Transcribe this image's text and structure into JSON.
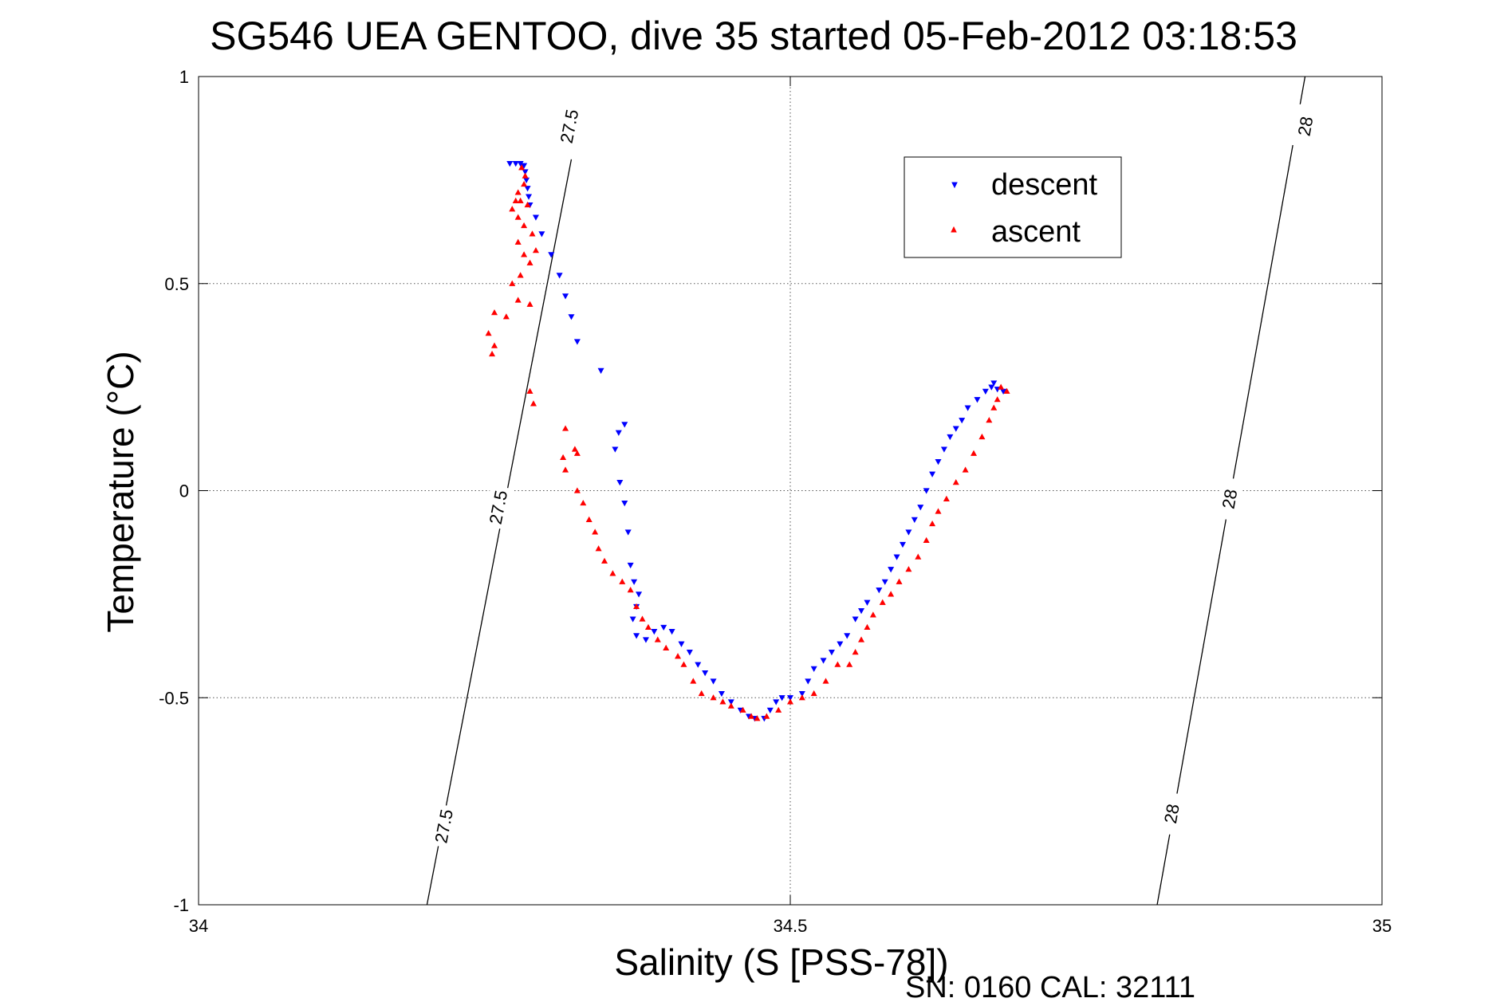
{
  "chart_data": {
    "type": "scatter",
    "title": "SG546 UEA GENTOO, dive 35 started 05-Feb-2012 03:18:53",
    "xlabel": "Salinity (S [PSS-78])",
    "ylabel": "Temperature (°C)",
    "xlim": [
      34,
      35
    ],
    "ylim": [
      -1,
      1
    ],
    "xticks": [
      34,
      34.5,
      35
    ],
    "xtick_labels": [
      "34",
      "34.5",
      "35"
    ],
    "yticks": [
      -1,
      -0.5,
      0,
      0.5,
      1
    ],
    "ytick_labels": [
      "-1",
      "-0.5",
      "0",
      "0.5",
      "1"
    ],
    "grid": true,
    "legend_position": "top-right",
    "footer": "SN: 0160  CAL: 32111",
    "isopycnals": [
      {
        "label": "27.5",
        "color": "#000000",
        "points": [
          [
            34.193,
            -1.0
          ],
          [
            34.315,
            0.8
          ]
        ],
        "label_positions": [
          [
            34.207,
            -0.81
          ],
          [
            34.253,
            -0.04
          ],
          [
            34.313,
            0.88
          ]
        ]
      },
      {
        "label": "28",
        "color": "#000000",
        "points": [
          [
            34.81,
            -1.0
          ],
          [
            34.935,
            1.0
          ]
        ],
        "label_positions": [
          [
            34.822,
            -0.78
          ],
          [
            34.871,
            -0.02
          ],
          [
            34.935,
            0.88
          ]
        ]
      }
    ],
    "series": [
      {
        "name": "descent",
        "color": "#0000ff",
        "marker": "triangle-down",
        "points": [
          [
            34.263,
            0.79
          ],
          [
            34.268,
            0.79
          ],
          [
            34.272,
            0.79
          ],
          [
            34.275,
            0.785
          ],
          [
            34.276,
            0.77
          ],
          [
            34.277,
            0.75
          ],
          [
            34.278,
            0.73
          ],
          [
            34.279,
            0.71
          ],
          [
            34.28,
            0.69
          ],
          [
            34.285,
            0.66
          ],
          [
            34.29,
            0.62
          ],
          [
            34.298,
            0.57
          ],
          [
            34.305,
            0.52
          ],
          [
            34.31,
            0.47
          ],
          [
            34.315,
            0.42
          ],
          [
            34.32,
            0.36
          ],
          [
            34.34,
            0.29
          ],
          [
            34.36,
            0.16
          ],
          [
            34.355,
            0.14
          ],
          [
            34.352,
            0.1
          ],
          [
            34.356,
            0.02
          ],
          [
            34.36,
            -0.03
          ],
          [
            34.363,
            -0.1
          ],
          [
            34.365,
            -0.18
          ],
          [
            34.368,
            -0.22
          ],
          [
            34.372,
            -0.25
          ],
          [
            34.37,
            -0.28
          ],
          [
            34.367,
            -0.31
          ],
          [
            34.37,
            -0.35
          ],
          [
            34.378,
            -0.36
          ],
          [
            34.385,
            -0.34
          ],
          [
            34.393,
            -0.33
          ],
          [
            34.4,
            -0.34
          ],
          [
            34.408,
            -0.37
          ],
          [
            34.415,
            -0.39
          ],
          [
            34.422,
            -0.42
          ],
          [
            34.428,
            -0.44
          ],
          [
            34.435,
            -0.46
          ],
          [
            34.442,
            -0.49
          ],
          [
            34.45,
            -0.51
          ],
          [
            34.458,
            -0.53
          ],
          [
            34.465,
            -0.545
          ],
          [
            34.47,
            -0.55
          ],
          [
            34.478,
            -0.55
          ],
          [
            34.483,
            -0.53
          ],
          [
            34.488,
            -0.51
          ],
          [
            34.493,
            -0.5
          ],
          [
            34.5,
            -0.5
          ],
          [
            34.51,
            -0.49
          ],
          [
            34.515,
            -0.46
          ],
          [
            34.52,
            -0.43
          ],
          [
            34.528,
            -0.41
          ],
          [
            34.535,
            -0.39
          ],
          [
            34.542,
            -0.37
          ],
          [
            34.548,
            -0.35
          ],
          [
            34.555,
            -0.31
          ],
          [
            34.56,
            -0.29
          ],
          [
            34.565,
            -0.27
          ],
          [
            34.575,
            -0.24
          ],
          [
            34.58,
            -0.22
          ],
          [
            34.585,
            -0.19
          ],
          [
            34.59,
            -0.16
          ],
          [
            34.595,
            -0.13
          ],
          [
            34.6,
            -0.1
          ],
          [
            34.605,
            -0.07
          ],
          [
            34.61,
            -0.04
          ],
          [
            34.615,
            0.0
          ],
          [
            34.62,
            0.04
          ],
          [
            34.625,
            0.07
          ],
          [
            34.63,
            0.1
          ],
          [
            34.635,
            0.13
          ],
          [
            34.64,
            0.15
          ],
          [
            34.645,
            0.17
          ],
          [
            34.65,
            0.2
          ],
          [
            34.658,
            0.22
          ],
          [
            34.665,
            0.24
          ],
          [
            34.67,
            0.25
          ],
          [
            34.672,
            0.26
          ],
          [
            34.675,
            0.245
          ],
          [
            34.68,
            0.24
          ]
        ]
      },
      {
        "name": "ascent",
        "color": "#ff0000",
        "marker": "triangle-up",
        "points": [
          [
            34.273,
            0.78
          ],
          [
            34.276,
            0.76
          ],
          [
            34.275,
            0.74
          ],
          [
            34.27,
            0.72
          ],
          [
            34.268,
            0.7
          ],
          [
            34.272,
            0.7
          ],
          [
            34.278,
            0.69
          ],
          [
            34.265,
            0.68
          ],
          [
            34.27,
            0.66
          ],
          [
            34.275,
            0.64
          ],
          [
            34.282,
            0.62
          ],
          [
            34.27,
            0.6
          ],
          [
            34.275,
            0.57
          ],
          [
            34.285,
            0.58
          ],
          [
            34.28,
            0.55
          ],
          [
            34.272,
            0.52
          ],
          [
            34.265,
            0.5
          ],
          [
            34.27,
            0.46
          ],
          [
            34.28,
            0.45
          ],
          [
            34.25,
            0.43
          ],
          [
            34.26,
            0.42
          ],
          [
            34.245,
            0.38
          ],
          [
            34.25,
            0.35
          ],
          [
            34.248,
            0.33
          ],
          [
            34.28,
            0.24
          ],
          [
            34.283,
            0.21
          ],
          [
            34.31,
            0.15
          ],
          [
            34.318,
            0.1
          ],
          [
            34.32,
            0.09
          ],
          [
            34.308,
            0.08
          ],
          [
            34.31,
            0.05
          ],
          [
            34.32,
            0.0
          ],
          [
            34.325,
            -0.03
          ],
          [
            34.33,
            -0.07
          ],
          [
            34.335,
            -0.1
          ],
          [
            34.338,
            -0.14
          ],
          [
            34.343,
            -0.17
          ],
          [
            34.35,
            -0.2
          ],
          [
            34.358,
            -0.22
          ],
          [
            34.365,
            -0.24
          ],
          [
            34.37,
            -0.28
          ],
          [
            34.375,
            -0.31
          ],
          [
            34.38,
            -0.33
          ],
          [
            34.388,
            -0.36
          ],
          [
            34.395,
            -0.38
          ],
          [
            34.405,
            -0.4
          ],
          [
            34.41,
            -0.42
          ],
          [
            34.418,
            -0.46
          ],
          [
            34.425,
            -0.49
          ],
          [
            34.435,
            -0.5
          ],
          [
            34.443,
            -0.51
          ],
          [
            34.45,
            -0.52
          ],
          [
            34.46,
            -0.53
          ],
          [
            34.467,
            -0.545
          ],
          [
            34.472,
            -0.55
          ],
          [
            34.48,
            -0.545
          ],
          [
            34.49,
            -0.53
          ],
          [
            34.5,
            -0.51
          ],
          [
            34.51,
            -0.5
          ],
          [
            34.52,
            -0.49
          ],
          [
            34.53,
            -0.46
          ],
          [
            34.54,
            -0.42
          ],
          [
            34.55,
            -0.42
          ],
          [
            34.555,
            -0.39
          ],
          [
            34.56,
            -0.36
          ],
          [
            34.565,
            -0.33
          ],
          [
            34.57,
            -0.3
          ],
          [
            34.578,
            -0.27
          ],
          [
            34.585,
            -0.25
          ],
          [
            34.592,
            -0.22
          ],
          [
            34.6,
            -0.19
          ],
          [
            34.608,
            -0.16
          ],
          [
            34.615,
            -0.12
          ],
          [
            34.62,
            -0.08
          ],
          [
            34.625,
            -0.05
          ],
          [
            34.632,
            -0.02
          ],
          [
            34.64,
            0.02
          ],
          [
            34.648,
            0.05
          ],
          [
            34.655,
            0.09
          ],
          [
            34.662,
            0.13
          ],
          [
            34.668,
            0.17
          ],
          [
            34.672,
            0.2
          ],
          [
            34.675,
            0.22
          ],
          [
            34.678,
            0.25
          ],
          [
            34.683,
            0.24
          ]
        ]
      }
    ]
  }
}
